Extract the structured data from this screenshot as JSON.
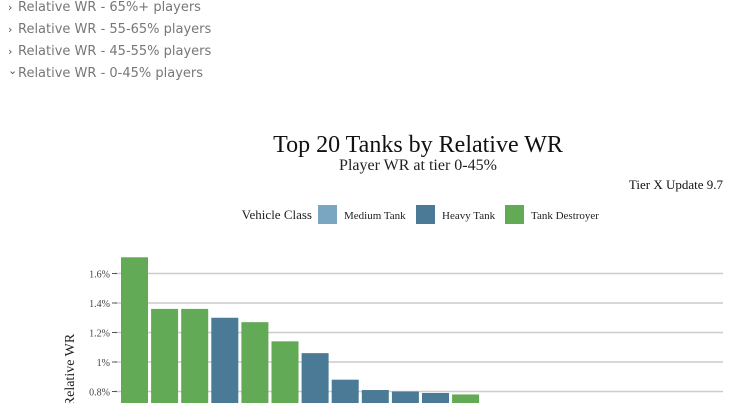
{
  "accordion": [
    {
      "label": "Relative WR - 65%+ players",
      "expanded": false
    },
    {
      "label": "Relative WR - 55-65% players",
      "expanded": false
    },
    {
      "label": "Relative WR - 45-55% players",
      "expanded": false
    },
    {
      "label": "Relative WR - 0-45% players",
      "expanded": true
    }
  ],
  "chart_data": {
    "type": "bar",
    "title": "Top 20 Tanks by Relative WR",
    "subtitle": "Player WR at tier 0-45%",
    "note": "Tier X Update 9.7",
    "ylabel": "Relative WR",
    "legend": {
      "title": "Vehicle Class",
      "placement": "top",
      "items": [
        {
          "name": "Medium Tank",
          "color": "#7aa6c2"
        },
        {
          "name": "Heavy Tank",
          "color": "#4a7a96"
        },
        {
          "name": "Tank Destroyer",
          "color": "#62aa55"
        }
      ]
    },
    "yticks": [
      "0.8%",
      "1%",
      "1.2%",
      "1.4%",
      "1.6%"
    ],
    "ytick_values": [
      0.8,
      1.0,
      1.2,
      1.4,
      1.6
    ],
    "grid": true,
    "series": [
      {
        "classes": [
          "Tank Destroyer",
          "Tank Destroyer",
          "Tank Destroyer",
          "Heavy Tank",
          "Tank Destroyer",
          "Tank Destroyer",
          "Heavy Tank",
          "Heavy Tank",
          "Heavy Tank",
          "Heavy Tank",
          "Heavy Tank",
          "Tank Destroyer"
        ],
        "values": [
          1.71,
          1.36,
          1.36,
          1.3,
          1.27,
          1.14,
          1.06,
          0.88,
          0.81,
          0.8,
          0.79,
          0.78
        ]
      }
    ]
  }
}
